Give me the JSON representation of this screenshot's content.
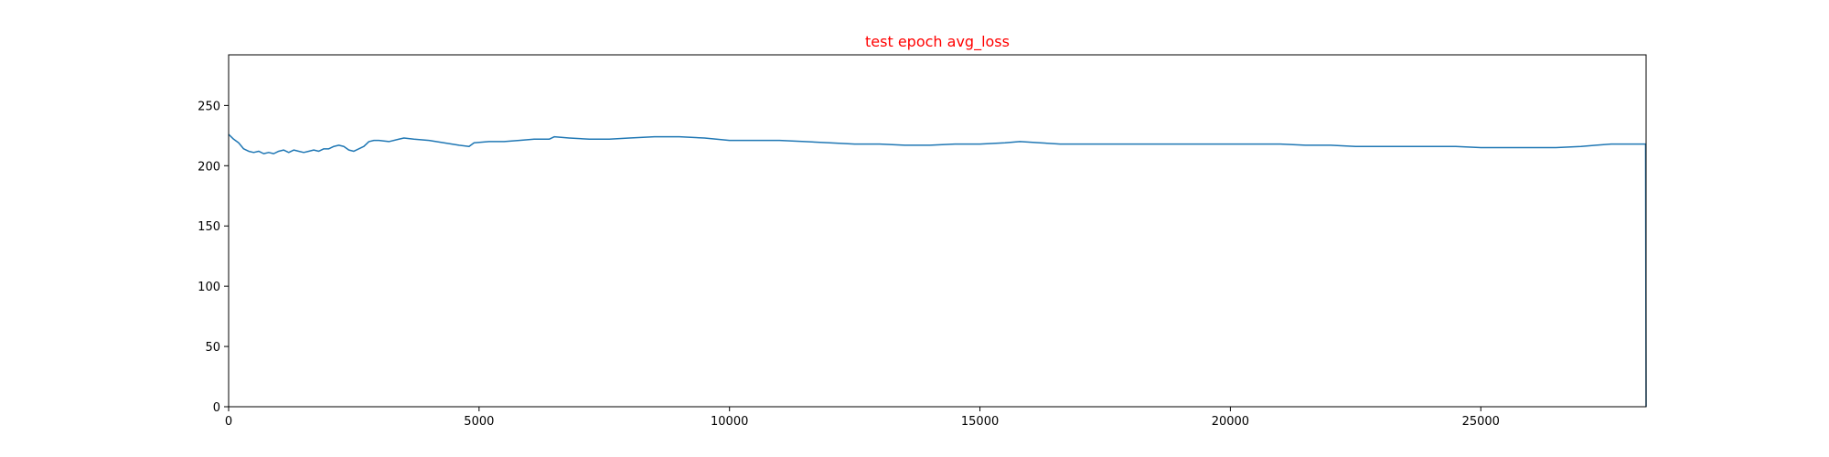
{
  "chart_data": {
    "type": "line",
    "title": "test epoch avg_loss",
    "title_color": "#ff0000",
    "xlabel": "",
    "ylabel": "",
    "xlim": [
      0,
      28300
    ],
    "ylim": [
      0,
      292
    ],
    "xticks": [
      0,
      5000,
      10000,
      15000,
      20000,
      25000
    ],
    "yticks": [
      0,
      50,
      100,
      150,
      200,
      250
    ],
    "grid": false,
    "legend": false,
    "series": [
      {
        "color": "#1f77b4",
        "x": [
          0,
          100,
          200,
          300,
          400,
          500,
          600,
          700,
          800,
          900,
          1000,
          1100,
          1200,
          1300,
          1400,
          1500,
          1600,
          1700,
          1800,
          1900,
          2000,
          2100,
          2200,
          2300,
          2400,
          2500,
          2600,
          2700,
          2800,
          2900,
          3000,
          3200,
          3400,
          3500,
          3700,
          4000,
          4300,
          4600,
          4800,
          4900,
          5200,
          5500,
          5800,
          6100,
          6400,
          6500,
          6800,
          7200,
          7600,
          8000,
          8500,
          9000,
          9500,
          10000,
          10500,
          11000,
          11500,
          12000,
          12500,
          13000,
          13500,
          14000,
          14500,
          15000,
          15500,
          15800,
          16200,
          16600,
          17000,
          17500,
          18000,
          18500,
          19000,
          19500,
          20000,
          20500,
          21000,
          21500,
          22000,
          22500,
          23000,
          23500,
          24000,
          24500,
          25000,
          25300,
          25600,
          26000,
          26500,
          27000,
          27300,
          27600,
          28000,
          28290,
          28300
        ],
        "y": [
          226,
          222,
          219,
          214,
          212,
          211,
          212,
          210,
          211,
          210,
          212,
          213,
          211,
          213,
          212,
          211,
          212,
          213,
          212,
          214,
          214,
          216,
          217,
          216,
          213,
          212,
          214,
          216,
          220,
          221,
          221,
          220,
          222,
          223,
          222,
          221,
          219,
          217,
          216,
          219,
          220,
          220,
          221,
          222,
          222,
          224,
          223,
          222,
          222,
          223,
          224,
          224,
          223,
          221,
          221,
          221,
          220,
          219,
          218,
          218,
          217,
          217,
          218,
          218,
          219,
          220,
          219,
          218,
          218,
          218,
          218,
          218,
          218,
          218,
          218,
          218,
          218,
          217,
          217,
          216,
          216,
          216,
          216,
          216,
          215,
          215,
          215,
          215,
          215,
          216,
          217,
          218,
          218,
          218,
          0
        ]
      }
    ]
  }
}
